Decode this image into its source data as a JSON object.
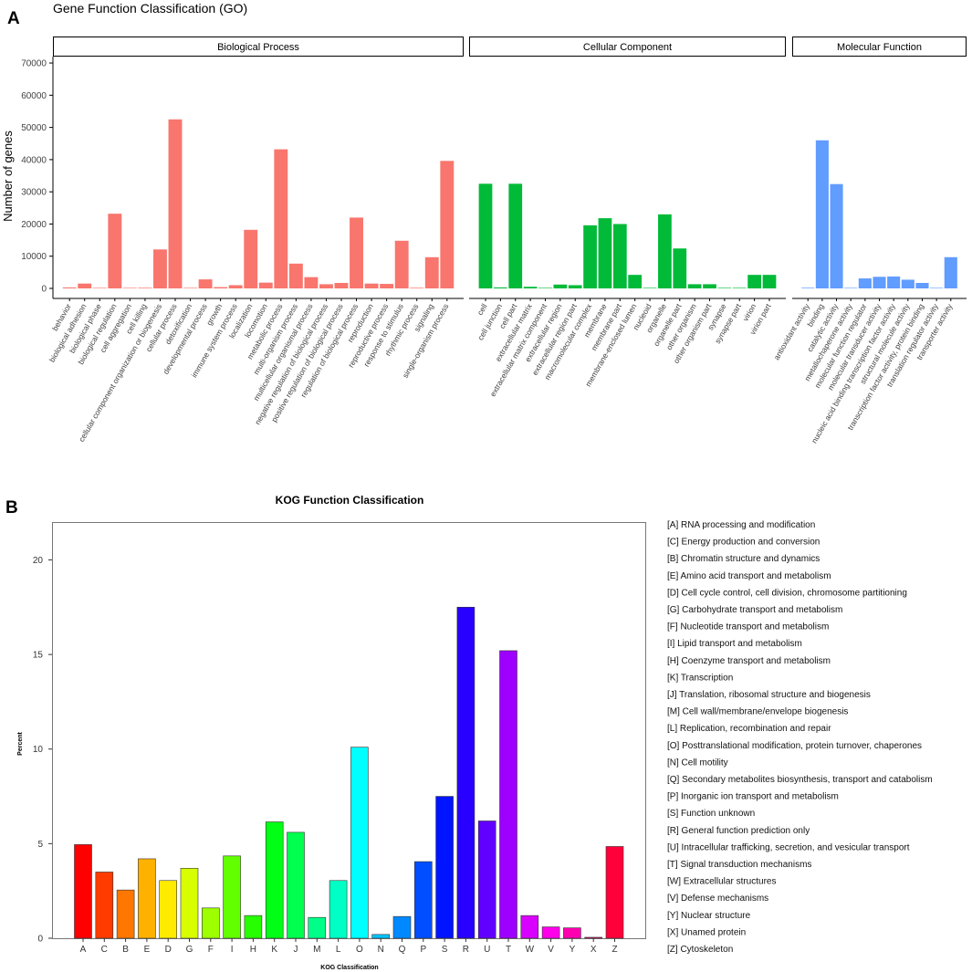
{
  "panel_a": {
    "label": "A",
    "title": "Gene Function Classification (GO)",
    "ylabel": "Number of genes"
  },
  "panel_b": {
    "label": "B",
    "title": "KOG Function Classification",
    "ylabel": "Percent",
    "xlabel": "KOG Classification"
  },
  "chart_data": [
    {
      "type": "bar",
      "title": "Gene Function Classification (GO)",
      "ylabel": "Number of genes",
      "xlabel": "",
      "ylim": [
        0,
        72000
      ],
      "yticks": [
        0,
        10000,
        20000,
        30000,
        40000,
        50000,
        60000,
        70000
      ],
      "grid": false,
      "facets": [
        {
          "name": "Biological Process",
          "color": "#F8766D",
          "categories": [
            "behavior",
            "biological adhesion",
            "biological phase",
            "biological regulation",
            "cell aggregation",
            "cell killing",
            "cellular component organization or biogenesis",
            "cellular process",
            "detoxification",
            "developmental process",
            "growth",
            "immune system process",
            "localization",
            "locomotion",
            "metabolic process",
            "multi-organism process",
            "multicellular organismal process",
            "negative regulation of biological process",
            "positive regulation of biological process",
            "regulation of biological process",
            "reproduction",
            "reproductive process",
            "response to stimulus",
            "rhythmic process",
            "signaling",
            "single-organism process"
          ],
          "values": [
            300,
            1500,
            50,
            23200,
            30,
            200,
            12100,
            52500,
            100,
            2800,
            400,
            1000,
            18200,
            1800,
            43200,
            7700,
            3500,
            1300,
            1700,
            22000,
            1500,
            1400,
            14800,
            200,
            9700,
            39600
          ]
        },
        {
          "name": "Cellular Component",
          "color": "#00BA38",
          "categories": [
            "cell",
            "cell junction",
            "cell part",
            "extracellular matrix",
            "extracellular matrix component",
            "extracellular region",
            "extracellular region part",
            "macromolecular complex",
            "membrane",
            "membrane part",
            "membrane-enclosed lumen",
            "nucleoid",
            "organelle",
            "organelle part",
            "other organism",
            "other organism part",
            "synapse",
            "synapse part",
            "virion",
            "virion part"
          ],
          "values": [
            32500,
            300,
            32500,
            500,
            50,
            1200,
            1000,
            19600,
            21800,
            20000,
            4200,
            50,
            23000,
            12400,
            1300,
            1300,
            100,
            100,
            4200,
            4200
          ]
        },
        {
          "name": "Molecular Function",
          "color": "#619CFF",
          "categories": [
            "antioxidant activity",
            "binding",
            "catalytic activity",
            "metallochaperone activity",
            "molecular function regulator",
            "molecular transducer activity",
            "nucleic acid binding transcription factor activity",
            "structural molecule activity",
            "transcription factor activity, protein binding",
            "translation regulator activity",
            "transporter activity"
          ],
          "values": [
            200,
            46000,
            32400,
            20,
            3100,
            3600,
            3700,
            2700,
            1700,
            50,
            9700
          ]
        }
      ]
    },
    {
      "type": "bar",
      "title": "KOG Function Classification",
      "xlabel": "KOG Classification",
      "ylabel": "Percent",
      "ylim": [
        0,
        22
      ],
      "yticks": [
        0,
        5,
        10,
        15,
        20
      ],
      "grid": false,
      "legend_position": "right",
      "categories": [
        "A",
        "C",
        "B",
        "E",
        "D",
        "G",
        "F",
        "I",
        "H",
        "K",
        "J",
        "M",
        "L",
        "O",
        "N",
        "Q",
        "P",
        "S",
        "R",
        "U",
        "T",
        "W",
        "V",
        "Y",
        "X",
        "Z"
      ],
      "values": [
        4.95,
        3.5,
        2.55,
        4.2,
        3.05,
        3.7,
        1.6,
        4.35,
        1.2,
        6.15,
        5.6,
        1.1,
        3.05,
        10.1,
        0.2,
        1.15,
        4.05,
        7.5,
        17.5,
        6.2,
        15.2,
        1.2,
        0.6,
        0.55,
        0.05,
        4.85
      ],
      "colors": [
        "#FF0000",
        "#FF3B00",
        "#FF7600",
        "#FFB100",
        "#FFEB00",
        "#D8FF00",
        "#9DFF00",
        "#62FF00",
        "#27FF00",
        "#00FF14",
        "#00FF4E",
        "#00FF89",
        "#00FFC4",
        "#00FFFF",
        "#00C4FF",
        "#0089FF",
        "#004EFF",
        "#0014FF",
        "#2700FF",
        "#6200FF",
        "#9D00FF",
        "#D800FF",
        "#FF00EB",
        "#FF00B1",
        "#FF0076",
        "#FF003B"
      ],
      "legend": [
        "[A] RNA processing and modification",
        "[C] Energy production and conversion",
        "[B] Chromatin structure and dynamics",
        "[E] Amino acid transport and metabolism",
        "[D] Cell cycle control, cell division, chromosome partitioning",
        "[G] Carbohydrate transport and metabolism",
        "[F] Nucleotide transport and metabolism",
        "[I] Lipid transport and metabolism",
        "[H] Coenzyme transport and metabolism",
        "[K] Transcription",
        "[J] Translation, ribosomal structure and biogenesis",
        "[M] Cell wall/membrane/envelope biogenesis",
        "[L] Replication, recombination and repair",
        "[O] Posttranslational modification, protein turnover, chaperones",
        "[N] Cell motility",
        "[Q] Secondary metabolites biosynthesis, transport and catabolism",
        "[P] Inorganic ion transport and metabolism",
        "[S] Function unknown",
        "[R] General function prediction only",
        "[U] Intracellular trafficking, secretion, and vesicular transport",
        "[T] Signal transduction mechanisms",
        "[W] Extracellular structures",
        "[V] Defense mechanisms",
        "[Y] Nuclear structure",
        "[X] Unamed protein",
        "[Z] Cytoskeleton"
      ]
    }
  ]
}
